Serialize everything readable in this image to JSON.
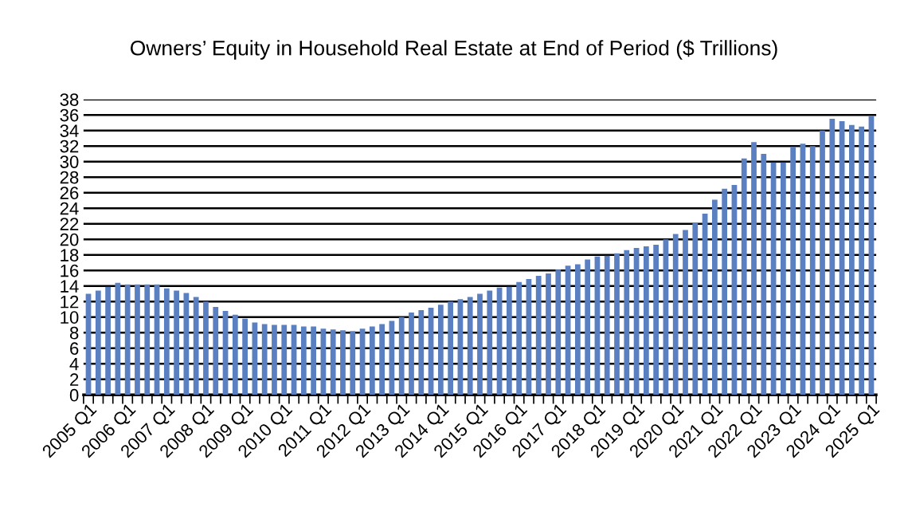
{
  "chart_data": {
    "type": "bar",
    "title": "Owners’ Equity in Household Real Estate at End of Period ($ Trillions)",
    "categories": [
      "2005 Q1",
      null,
      null,
      null,
      "2006 Q1",
      null,
      null,
      null,
      "2007 Q1",
      null,
      null,
      null,
      "2008 Q1",
      null,
      null,
      null,
      "2009 Q1",
      null,
      null,
      null,
      "2010 Q1",
      null,
      null,
      null,
      "2011 Q1",
      null,
      null,
      null,
      "2012 Q1",
      null,
      null,
      null,
      "2013 Q1",
      null,
      null,
      null,
      "2014 Q1",
      null,
      null,
      null,
      "2015 Q1",
      null,
      null,
      null,
      "2016 Q1",
      null,
      null,
      null,
      "2017 Q1",
      null,
      null,
      null,
      "2018 Q1",
      null,
      null,
      null,
      "2019 Q1",
      null,
      null,
      null,
      "2020 Q1",
      null,
      null,
      null,
      "2021 Q1",
      null,
      null,
      null,
      "2022 Q1",
      null,
      null,
      null,
      "2023 Q1",
      null,
      null,
      null,
      "2024 Q1",
      null,
      null,
      null,
      "2025 Q1"
    ],
    "values": [
      13.0,
      13.4,
      13.9,
      14.4,
      14.2,
      14.2,
      14.2,
      14.2,
      13.7,
      13.4,
      13.1,
      12.6,
      12.0,
      11.3,
      10.8,
      10.3,
      9.8,
      9.3,
      9.1,
      9.0,
      9.0,
      9.0,
      8.8,
      8.8,
      8.5,
      8.4,
      8.3,
      8.2,
      8.5,
      8.8,
      9.1,
      9.5,
      10.0,
      10.6,
      10.9,
      11.2,
      11.6,
      12.0,
      12.3,
      12.6,
      13.0,
      13.4,
      13.8,
      13.9,
      14.5,
      14.9,
      15.3,
      15.6,
      16.1,
      16.6,
      16.8,
      17.4,
      17.8,
      17.9,
      18.2,
      18.6,
      18.9,
      19.1,
      19.3,
      20.0,
      20.7,
      21.2,
      22.1,
      23.3,
      25.1,
      26.5,
      27.0,
      30.4,
      32.5,
      31.0,
      29.9,
      29.9,
      31.9,
      32.3,
      32.0,
      34.0,
      35.5,
      35.2,
      34.7,
      34.5,
      35.8
    ],
    "color": "#5b80c2",
    "ylim": [
      0,
      38
    ],
    "yticks": [
      0,
      2,
      4,
      6,
      8,
      10,
      12,
      14,
      16,
      18,
      20,
      22,
      24,
      26,
      28,
      30,
      32,
      34,
      36,
      38
    ],
    "grid": "y",
    "legend": false
  }
}
